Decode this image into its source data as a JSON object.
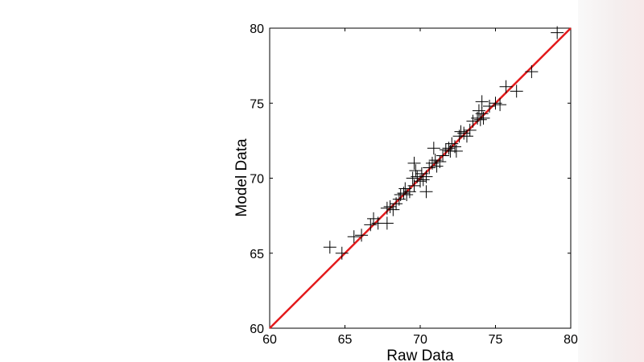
{
  "chart_data": {
    "type": "scatter",
    "title": "",
    "xlabel": "Raw Data",
    "ylabel": "Model Data",
    "xlim": [
      60,
      80
    ],
    "ylim": [
      60,
      80
    ],
    "xticks": [
      60,
      65,
      70,
      75,
      80
    ],
    "yticks": [
      60,
      65,
      70,
      75,
      80
    ],
    "grid": false,
    "marker": "+",
    "colors": {
      "points": "#000000",
      "fit_line": "#e31a1c"
    },
    "fit_line": {
      "x": [
        60,
        80
      ],
      "y": [
        60,
        80
      ]
    },
    "series": [
      {
        "values": [
          [
            64.0,
            65.4
          ],
          [
            64.8,
            65.0
          ],
          [
            65.6,
            66.1
          ],
          [
            66.1,
            66.2
          ],
          [
            66.7,
            66.9
          ],
          [
            66.9,
            67.3
          ],
          [
            67.2,
            67.0
          ],
          [
            67.8,
            67.0
          ],
          [
            67.8,
            68.0
          ],
          [
            68.0,
            68.1
          ],
          [
            68.2,
            67.9
          ],
          [
            68.4,
            68.3
          ],
          [
            68.6,
            68.6
          ],
          [
            68.7,
            68.9
          ],
          [
            68.9,
            69.0
          ],
          [
            69.0,
            69.3
          ],
          [
            69.1,
            68.9
          ],
          [
            69.3,
            69.1
          ],
          [
            69.6,
            69.5
          ],
          [
            69.5,
            70.0
          ],
          [
            69.7,
            70.5
          ],
          [
            69.6,
            71.0
          ],
          [
            69.8,
            70.1
          ],
          [
            70.0,
            69.8
          ],
          [
            70.1,
            70.3
          ],
          [
            70.2,
            69.9
          ],
          [
            70.4,
            70.1
          ],
          [
            70.4,
            69.1
          ],
          [
            70.6,
            70.7
          ],
          [
            70.8,
            71.0
          ],
          [
            70.9,
            72.0
          ],
          [
            71.0,
            71.2
          ],
          [
            71.1,
            70.8
          ],
          [
            71.3,
            71.1
          ],
          [
            71.5,
            71.5
          ],
          [
            71.7,
            71.9
          ],
          [
            71.9,
            72.0
          ],
          [
            72.0,
            71.8
          ],
          [
            72.1,
            72.3
          ],
          [
            72.3,
            72.1
          ],
          [
            72.4,
            71.8
          ],
          [
            72.6,
            72.8
          ],
          [
            72.7,
            73.1
          ],
          [
            72.9,
            73.0
          ],
          [
            73.1,
            72.8
          ],
          [
            73.3,
            73.2
          ],
          [
            73.5,
            73.8
          ],
          [
            73.8,
            74.0
          ],
          [
            73.9,
            74.5
          ],
          [
            74.1,
            74.3
          ],
          [
            74.0,
            73.9
          ],
          [
            74.2,
            74.0
          ],
          [
            74.1,
            75.1
          ],
          [
            74.6,
            74.8
          ],
          [
            75.0,
            75.0
          ],
          [
            75.3,
            74.9
          ],
          [
            75.7,
            76.1
          ],
          [
            76.4,
            75.8
          ],
          [
            77.4,
            77.1
          ],
          [
            79.1,
            79.7
          ]
        ]
      }
    ]
  }
}
